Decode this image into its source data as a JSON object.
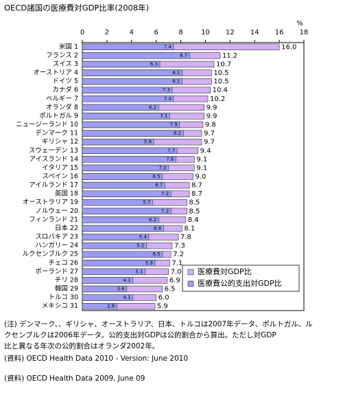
{
  "chart_data": {
    "type": "bar",
    "orientation": "horizontal",
    "title": "OECD諸国の医療費対GDP比率(2008年)",
    "x_unit": "%",
    "categories": [
      "米国 1",
      "フランス 2",
      "スイス 3",
      "オーストリア 4",
      "ドイツ 5",
      "カナダ 6",
      "ベルギー 7",
      "オランダ 8",
      "ポルトガル 9",
      "ニュージーランド 10",
      "デンマーク 11",
      "ギリシャ 12",
      "スウェーデン 13",
      "アイスランド 14",
      "イタリア 15",
      "スペイン 16",
      "アイルランド 17",
      "英国 18",
      "オーストラリア 19",
      "ノルウェー 20",
      "フィンランド 21",
      "日本 22",
      "スロバキア 23",
      "ハンガリー 24",
      "ルクセンブルク 25",
      "チェコ 26",
      "ポーランド 27",
      "チリ 28",
      "韓国 29",
      "トルコ 30",
      "メキシコ 31"
    ],
    "series": [
      {
        "name": "医療費対GDP比",
        "color": "#d5b0f2",
        "values": [
          16.0,
          11.2,
          10.7,
          10.5,
          10.5,
          10.4,
          10.2,
          9.9,
          9.9,
          9.8,
          9.7,
          9.7,
          9.4,
          9.1,
          9.1,
          9.0,
          8.7,
          8.7,
          8.5,
          8.5,
          8.4,
          8.1,
          7.8,
          7.3,
          7.2,
          7.1,
          7.0,
          6.9,
          6.5,
          6.0,
          5.9
        ],
        "value_labels": [
          "16.0",
          "11.2",
          "10.7",
          "10.5",
          "10.5",
          "10.4",
          "10.2",
          "9.9",
          "9.9",
          "9.8",
          "9.7",
          "9.7",
          "9.4",
          "9.1",
          "9.1",
          "9.0",
          "8.7",
          "8.7",
          "8.5",
          "8.5",
          "8.4",
          "8.1",
          "7.8",
          "7.3",
          "7.2",
          "7.1",
          "7.0",
          "6.9",
          "6.5",
          "6.0",
          "5.9"
        ]
      },
      {
        "name": "医療費公的支出対GDP比",
        "color": "#9c9cf2",
        "values": [
          7.4,
          8.7,
          6.3,
          8.1,
          8.1,
          7.3,
          7.4,
          6.2,
          7.1,
          7.9,
          8.2,
          5.8,
          7.7,
          7.6,
          7.0,
          6.5,
          6.7,
          7.2,
          5.7,
          7.2,
          6.2,
          6.6,
          5.4,
          5.2,
          6.5,
          5.9,
          5.1,
          4.1,
          3.6,
          4.1,
          2.8
        ],
        "value_labels": [
          "7.4",
          "8.7",
          "6.3",
          "8.1",
          "8.1",
          "7.3",
          "7.4",
          "6.2",
          "7.1",
          "7.9",
          "8.2",
          "5.8",
          "7.7",
          "7.6",
          "7.0",
          "6.5",
          "6.7",
          "7.2",
          "5.7",
          "7.2",
          "6.2",
          "6.6",
          "5.4",
          "5.2",
          "6.5",
          "5.9",
          "5.1",
          "4.1",
          "3.6",
          "4.1",
          "2.8"
        ]
      }
    ],
    "xlim": [
      0,
      18
    ],
    "xticks": [
      0,
      2,
      4,
      6,
      8,
      10,
      12,
      14,
      16,
      18
    ],
    "grid": false,
    "legend": "lower right",
    "notes": [
      "(注) デンマーク、、ギリシャ、オーストラリア、日本、トルコは2007年データ、ポルトガル、ル",
      "クセンブルクは2006年データ。公的支出対GDPは公的割合から算出。ただし対GDP",
      "比と異なる年次の公的割合はオランダ2002年。",
      "(資料) OECD Health Data 2010 - Version: June 2010",
      "(資料) OECD Health Data 2009, June 09"
    ]
  }
}
